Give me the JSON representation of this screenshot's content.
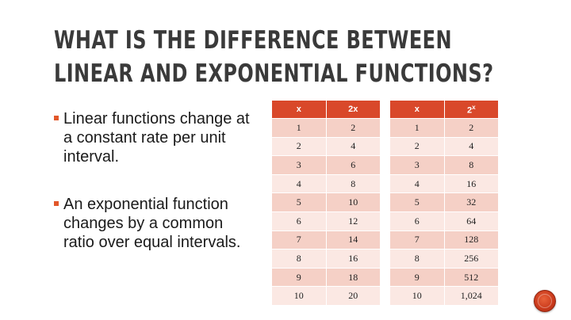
{
  "slide": {
    "title_line1": "What is the difference between",
    "title_line2": "linear and exponential functions?",
    "bullets": [
      "Linear functions change at a constant rate per unit interval.",
      "An exponential function changes by a common ratio over equal intervals."
    ]
  },
  "linear_table": {
    "headers": [
      "x",
      "2x"
    ],
    "rows": [
      [
        "1",
        "2"
      ],
      [
        "2",
        "4"
      ],
      [
        "3",
        "6"
      ],
      [
        "4",
        "8"
      ],
      [
        "5",
        "10"
      ],
      [
        "6",
        "12"
      ],
      [
        "7",
        "14"
      ],
      [
        "8",
        "16"
      ],
      [
        "9",
        "18"
      ],
      [
        "10",
        "20"
      ]
    ]
  },
  "exponential_table": {
    "headers": [
      "x",
      "2",
      "x"
    ],
    "rows": [
      [
        "1",
        "2"
      ],
      [
        "2",
        "4"
      ],
      [
        "3",
        "8"
      ],
      [
        "4",
        "16"
      ],
      [
        "5",
        "32"
      ],
      [
        "6",
        "64"
      ],
      [
        "7",
        "128"
      ],
      [
        "8",
        "256"
      ],
      [
        "9",
        "512"
      ],
      [
        "10",
        "1,024"
      ]
    ]
  },
  "colors": {
    "accent": "#d9482a",
    "row_dark": "#f5d0c6",
    "row_light": "#fbe8e3",
    "title": "#3a3a3a"
  },
  "icons": {
    "nav_button": "circle-button-icon"
  }
}
